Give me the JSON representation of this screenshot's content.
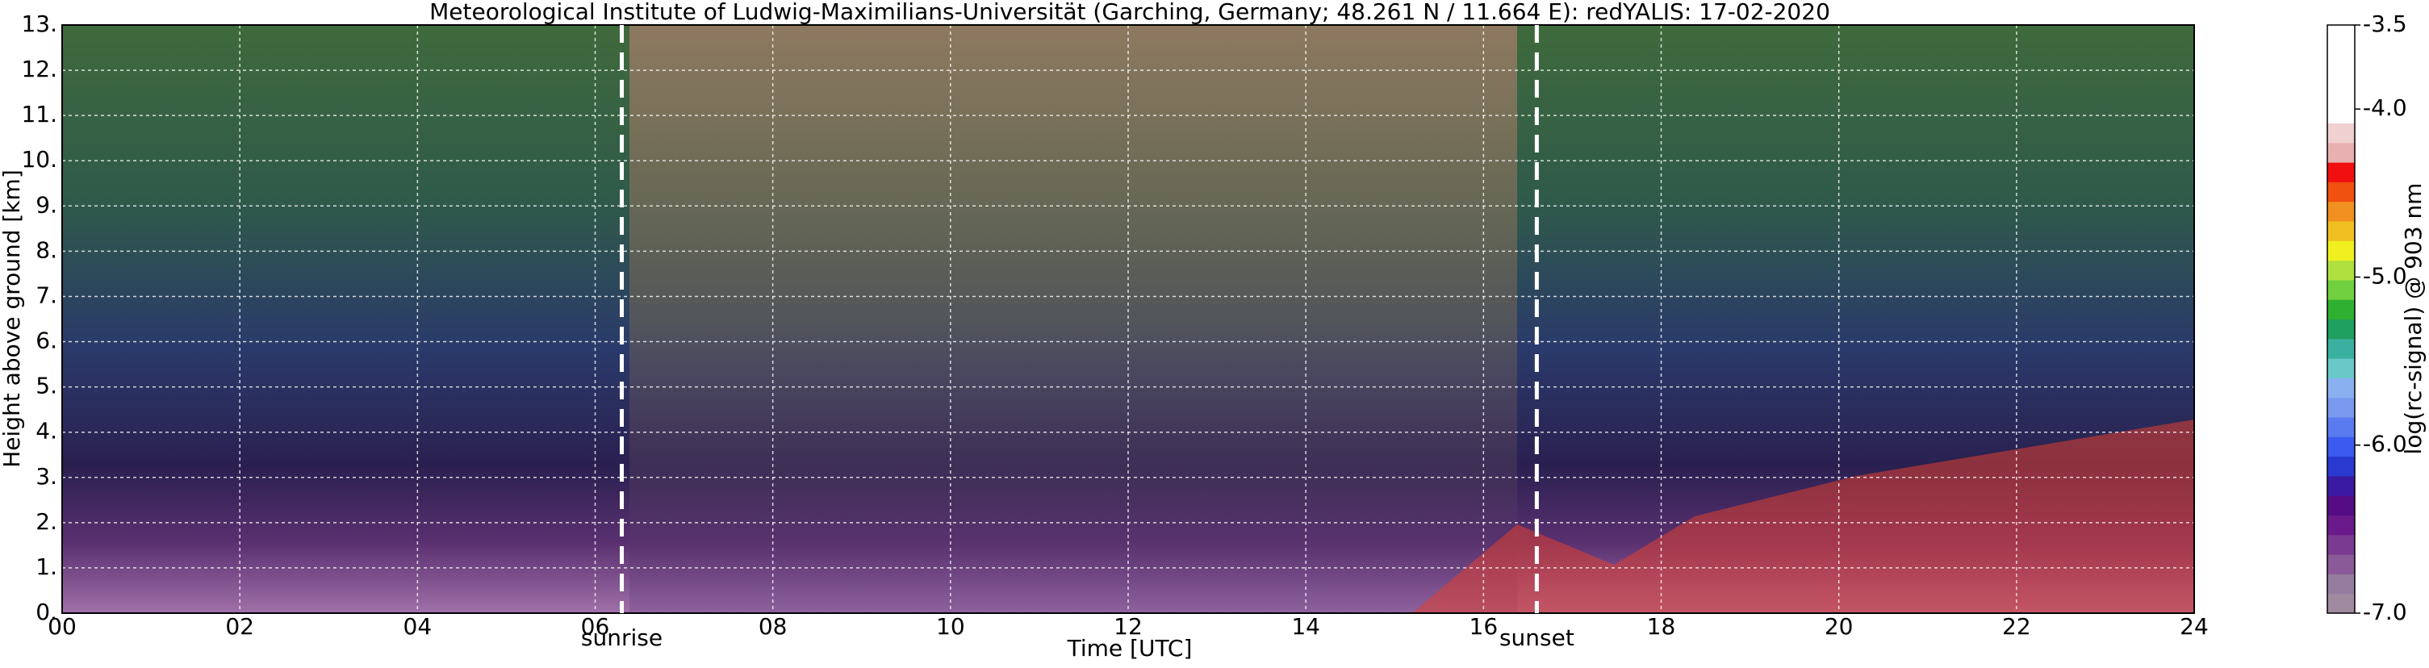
{
  "chart_data": {
    "type": "heatmap",
    "title": "Meteorological Institute of Ludwig-Maximilians-Universität (Garching, Germany; 48.261 N / 11.664 E):    redYALIS: 17-02-2020",
    "xlabel": "Time [UTC]",
    "ylabel": "Height above ground [km]",
    "xlim": [
      0,
      24
    ],
    "xticks": [
      {
        "value": 0,
        "label": "00"
      },
      {
        "value": 2,
        "label": "02"
      },
      {
        "value": 4,
        "label": "04"
      },
      {
        "value": 6,
        "label": "06"
      },
      {
        "value": 8,
        "label": "08"
      },
      10,
      12,
      14,
      16,
      18,
      20,
      22,
      24
    ],
    "ylim": [
      0,
      13
    ],
    "yticks": [
      {
        "value": 0,
        "label": "0."
      },
      {
        "value": 1,
        "label": "1."
      },
      {
        "value": 2,
        "label": "2."
      },
      {
        "value": 3,
        "label": "3."
      },
      {
        "value": 4,
        "label": "4."
      },
      {
        "value": 5,
        "label": "5."
      },
      {
        "value": 6,
        "label": "6."
      },
      {
        "value": 7,
        "label": "7."
      },
      {
        "value": 8,
        "label": "8."
      },
      {
        "value": 9,
        "label": "9."
      },
      {
        "value": 10,
        "label": "10."
      },
      {
        "value": 11,
        "label": "11."
      },
      {
        "value": 12,
        "label": "12."
      },
      {
        "value": 13,
        "label": "13."
      }
    ],
    "grid": true,
    "annotations": [
      {
        "x": 6.3,
        "label": "sunrise"
      },
      {
        "x": 16.6,
        "label": "sunset"
      }
    ],
    "colorbar": {
      "label": "log(rc-signal) @ 903 nm",
      "lim": [
        -7,
        -3.5
      ],
      "ticks": [
        {
          "value": -7,
          "label": "-7.0"
        },
        {
          "value": -6,
          "label": "-6.0"
        },
        {
          "value": -5,
          "label": "-5.0"
        },
        {
          "value": -4,
          "label": "-4.0"
        },
        -3.5
      ],
      "colors": [
        "#a08aa0",
        "#957c9e",
        "#8a5a98",
        "#7a3a90",
        "#6a1a8a",
        "#560c82",
        "#3a1aa0",
        "#2a3ad0",
        "#3a5af0",
        "#5a7af0",
        "#7a9af0",
        "#8ab0f0",
        "#6ac8c8",
        "#3ab0a0",
        "#20a060",
        "#30b030",
        "#70d040",
        "#b0e040",
        "#f0f020",
        "#f0c020",
        "#f09020",
        "#f05010",
        "#f01010",
        "#e8b0b0",
        "#f0d0d0",
        "#ffffff",
        "#ffffff",
        "#ffffff",
        "#ffffff",
        "#ffffff"
      ]
    }
  }
}
